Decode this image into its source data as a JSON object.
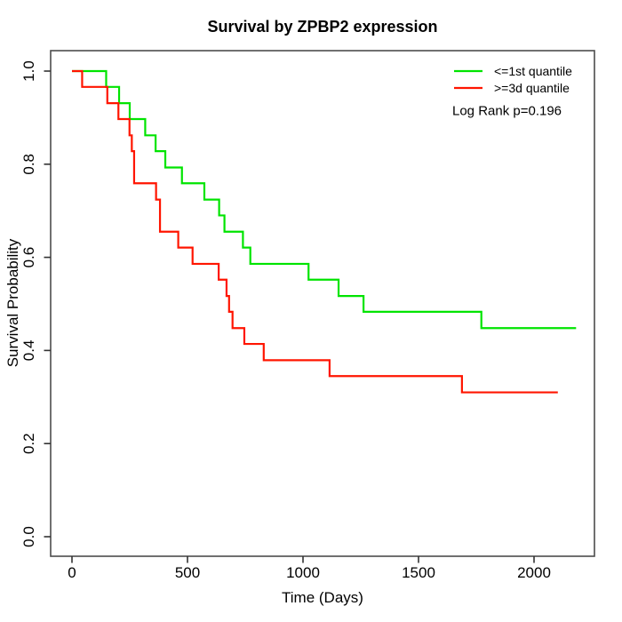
{
  "title": "Survival by ZPBP2 expression",
  "colors": {
    "group1": "#00e400",
    "group2": "#ff1500",
    "frame": "#4d4d4d",
    "tick": "#333333",
    "text": "#000000",
    "background": "#ffffff"
  },
  "legend": {
    "position": "top-right",
    "items": [
      {
        "label": "<=1st quantile",
        "color_key": "group1"
      },
      {
        "label": ">=3d quantile",
        "color_key": "group2"
      }
    ],
    "note": "Log Rank p=0.196"
  },
  "chart_data": {
    "type": "line",
    "subtype": "kaplan-meier-step",
    "title": "Survival by ZPBP2 expression",
    "xlabel": "Time (Days)",
    "ylabel": "Survival Probability",
    "xlim": [
      0,
      2200
    ],
    "ylim": [
      0.0,
      1.0
    ],
    "grid": false,
    "legend_position": "top-right",
    "x_ticks": [
      0,
      500,
      1000,
      1500,
      2000
    ],
    "x_tick_labels": [
      "0",
      "500",
      "1000",
      "1500",
      "2000"
    ],
    "y_ticks": [
      0.0,
      0.2,
      0.4,
      0.6,
      0.8,
      1.0
    ],
    "y_tick_labels": [
      "0.0",
      "0.2",
      "0.4",
      "0.6",
      "0.8",
      "1.0"
    ],
    "annotation": "Log Rank p=0.196",
    "series": [
      {
        "name": "<=1st quantile",
        "color_key": "group1",
        "start": [
          0,
          1.0
        ],
        "steps": [
          [
            148,
            0.966
          ],
          [
            204,
            0.931
          ],
          [
            250,
            0.897
          ],
          [
            317,
            0.862
          ],
          [
            362,
            0.828
          ],
          [
            404,
            0.793
          ],
          [
            476,
            0.759
          ],
          [
            573,
            0.724
          ],
          [
            637,
            0.69
          ],
          [
            660,
            0.655
          ],
          [
            740,
            0.621
          ],
          [
            772,
            0.586
          ],
          [
            1024,
            0.552
          ],
          [
            1154,
            0.517
          ],
          [
            1262,
            0.483
          ],
          [
            1772,
            0.448
          ]
        ],
        "end_time": 2182,
        "final_survival": 0.448
      },
      {
        "name": ">=3d quantile",
        "color_key": "group2",
        "start": [
          0,
          1.0
        ],
        "steps": [
          [
            44,
            0.966
          ],
          [
            153,
            0.931
          ],
          [
            201,
            0.897
          ],
          [
            249,
            0.862
          ],
          [
            259,
            0.828
          ],
          [
            269,
            0.759
          ],
          [
            364,
            0.724
          ],
          [
            381,
            0.655
          ],
          [
            460,
            0.621
          ],
          [
            522,
            0.586
          ],
          [
            635,
            0.552
          ],
          [
            669,
            0.517
          ],
          [
            680,
            0.483
          ],
          [
            695,
            0.448
          ],
          [
            746,
            0.414
          ],
          [
            830,
            0.379
          ],
          [
            1115,
            0.345
          ],
          [
            1688,
            0.31
          ]
        ],
        "end_time": 2103,
        "final_survival": 0.31
      }
    ]
  }
}
